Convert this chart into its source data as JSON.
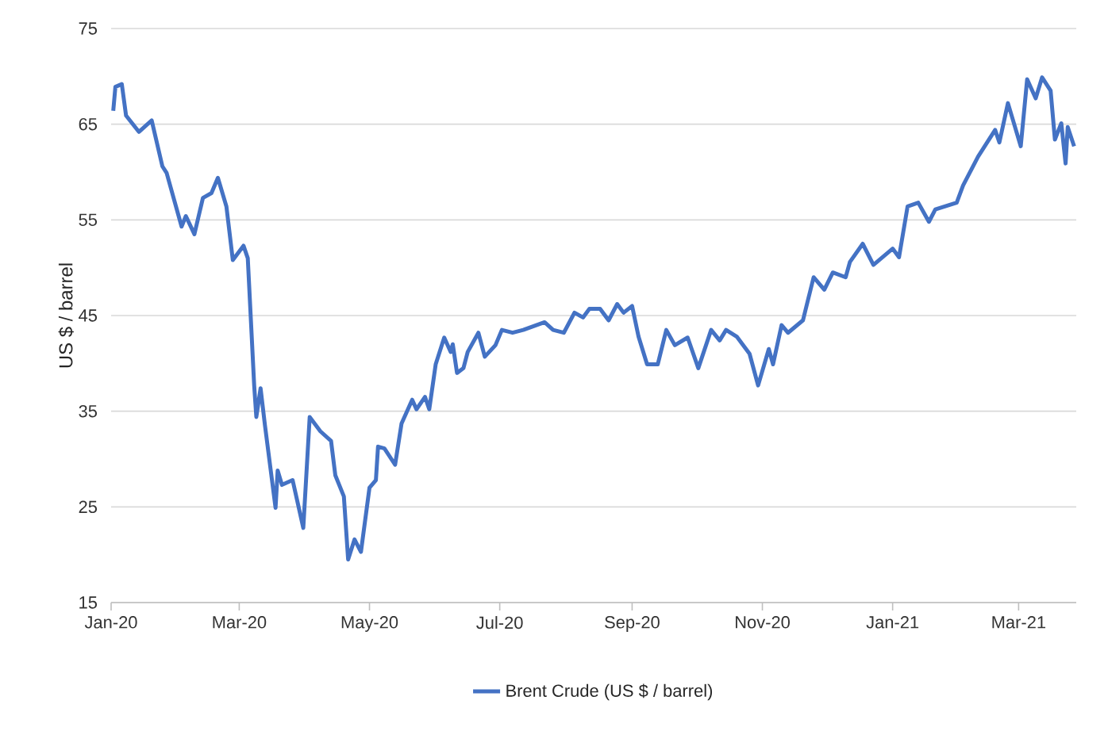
{
  "chart_data": {
    "type": "line",
    "ylabel": "US $ / barrel",
    "xlim": [
      "2020-01-01",
      "2021-03-28"
    ],
    "xticks": [
      {
        "value": "2020-01-01",
        "label": "Jan-20"
      },
      {
        "value": "2020-03-01",
        "label": "Mar-20"
      },
      {
        "value": "2020-05-01",
        "label": "May-20"
      },
      {
        "value": "2020-07-01",
        "label": "Jul-20"
      },
      {
        "value": "2020-09-01",
        "label": "Sep-20"
      },
      {
        "value": "2020-11-01",
        "label": "Nov-20"
      },
      {
        "value": "2021-01-01",
        "label": "Jan-21"
      },
      {
        "value": "2021-03-01",
        "label": "Mar-21"
      }
    ],
    "ylim": [
      15,
      75
    ],
    "yticks": [
      15,
      25,
      35,
      45,
      55,
      65,
      75
    ],
    "grid": "y",
    "legend": "bottom",
    "marker": "none",
    "line_style": "solid",
    "x": [
      "2020-01-02",
      "2020-01-03",
      "2020-01-06",
      "2020-01-08",
      "2020-01-14",
      "2020-01-20",
      "2020-01-25",
      "2020-01-27",
      "2020-02-03",
      "2020-02-05",
      "2020-02-09",
      "2020-02-13",
      "2020-02-17",
      "2020-02-20",
      "2020-02-24",
      "2020-02-27",
      "2020-03-03",
      "2020-03-05",
      "2020-03-08",
      "2020-03-09",
      "2020-03-11",
      "2020-03-13",
      "2020-03-18",
      "2020-03-19",
      "2020-03-21",
      "2020-03-26",
      "2020-03-31",
      "2020-04-03",
      "2020-04-08",
      "2020-04-13",
      "2020-04-15",
      "2020-04-19",
      "2020-04-21",
      "2020-04-24",
      "2020-04-27",
      "2020-05-01",
      "2020-05-04",
      "2020-05-05",
      "2020-05-08",
      "2020-05-13",
      "2020-05-16",
      "2020-05-21",
      "2020-05-23",
      "2020-05-27",
      "2020-05-29",
      "2020-06-01",
      "2020-06-05",
      "2020-06-08",
      "2020-06-09",
      "2020-06-11",
      "2020-06-14",
      "2020-06-16",
      "2020-06-21",
      "2020-06-24",
      "2020-06-29",
      "2020-07-02",
      "2020-07-07",
      "2020-07-12",
      "2020-07-22",
      "2020-07-26",
      "2020-07-31",
      "2020-08-05",
      "2020-08-09",
      "2020-08-12",
      "2020-08-17",
      "2020-08-21",
      "2020-08-25",
      "2020-08-28",
      "2020-09-01",
      "2020-09-04",
      "2020-09-08",
      "2020-09-13",
      "2020-09-17",
      "2020-09-21",
      "2020-09-27",
      "2020-10-02",
      "2020-10-08",
      "2020-10-12",
      "2020-10-15",
      "2020-10-20",
      "2020-10-26",
      "2020-10-30",
      "2020-11-04",
      "2020-11-06",
      "2020-11-10",
      "2020-11-13",
      "2020-11-20",
      "2020-11-25",
      "2020-11-30",
      "2020-12-04",
      "2020-12-10",
      "2020-12-12",
      "2020-12-18",
      "2020-12-23",
      "2021-01-01",
      "2021-01-04",
      "2021-01-08",
      "2021-01-13",
      "2021-01-18",
      "2021-01-21",
      "2021-01-31",
      "2021-02-03",
      "2021-02-10",
      "2021-02-18",
      "2021-02-20",
      "2021-02-24",
      "2021-03-02",
      "2021-03-05",
      "2021-03-09",
      "2021-03-12",
      "2021-03-16",
      "2021-03-18",
      "2021-03-21",
      "2021-03-23",
      "2021-03-24",
      "2021-03-27"
    ],
    "series": [
      {
        "name": "Brent Crude (US $ / barrel)",
        "color": "#4472c4",
        "values": [
          66.4,
          68.9,
          69.2,
          65.9,
          64.2,
          65.4,
          60.6,
          59.9,
          54.3,
          55.4,
          53.5,
          57.3,
          57.8,
          59.4,
          56.4,
          50.8,
          52.3,
          51.0,
          37.7,
          34.4,
          37.4,
          33.6,
          24.9,
          28.8,
          27.3,
          27.8,
          22.8,
          34.4,
          32.9,
          31.9,
          28.3,
          26.1,
          19.5,
          21.6,
          20.3,
          27.0,
          27.8,
          31.3,
          31.1,
          29.4,
          33.7,
          36.2,
          35.2,
          36.5,
          35.2,
          39.9,
          42.7,
          41.2,
          42.0,
          39.0,
          39.5,
          41.2,
          43.2,
          40.7,
          41.9,
          43.5,
          43.2,
          43.5,
          44.3,
          43.5,
          43.2,
          45.3,
          44.8,
          45.7,
          45.7,
          44.5,
          46.2,
          45.3,
          46.0,
          42.8,
          39.9,
          39.9,
          43.5,
          41.9,
          42.7,
          39.5,
          43.5,
          42.4,
          43.5,
          42.8,
          41.0,
          37.7,
          41.5,
          39.9,
          44.0,
          43.2,
          44.5,
          49.0,
          47.7,
          49.5,
          49.0,
          50.6,
          52.5,
          50.3,
          52.0,
          51.1,
          56.4,
          56.8,
          54.8,
          56.1,
          56.8,
          58.6,
          61.6,
          64.4,
          63.1,
          67.2,
          62.7,
          69.7,
          67.7,
          69.9,
          68.5,
          63.4,
          65.1,
          60.9,
          64.7,
          62.7
        ]
      }
    ]
  }
}
